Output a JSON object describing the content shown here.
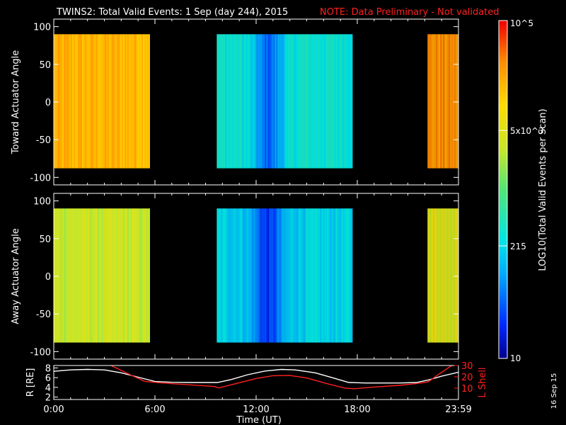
{
  "title": {
    "main": "TWINS2: Total Valid Events:  1 Sep (day 244), 2015",
    "note": "NOTE: Data Preliminary - Not validated",
    "note_color": "#ff2020"
  },
  "date_stamp": "16 Sep 15",
  "colorbar": {
    "label": "LOG10(Total Valid Events per Scan)",
    "scale": "log",
    "min": 10,
    "max": 100000,
    "tick_labels": [
      "10",
      "215",
      "5x10^3",
      "10^5"
    ],
    "tick_values": [
      10,
      215,
      5000,
      100000
    ]
  },
  "chart_data": [
    {
      "type": "heatmap",
      "name": "toward-panel",
      "ylabel": "Toward Actuator Angle",
      "ylim": [
        -110,
        110
      ],
      "yticks": [
        100,
        50,
        0,
        -50,
        -100
      ],
      "angle_range": [
        -88,
        90
      ],
      "xlim_hours": [
        0,
        24
      ],
      "xticks": [
        "0:00",
        "6:00",
        "12:00",
        "18:00",
        "23:59"
      ],
      "segments": [
        {
          "start": "0:00",
          "end": "5:40",
          "level": 4.25
        },
        {
          "start": "9:40",
          "end": "17:40",
          "level": 2.5,
          "min_level": 1.7,
          "min_time": "12:40"
        },
        {
          "start": "22:10",
          "end": "23:59",
          "level": 4.45
        }
      ]
    },
    {
      "type": "heatmap",
      "name": "away-panel",
      "ylabel": "Away Actuator Angle",
      "ylim": [
        -110,
        110
      ],
      "yticks": [
        100,
        50,
        0,
        -50,
        -100
      ],
      "angle_range": [
        -88,
        90
      ],
      "xlim_hours": [
        0,
        24
      ],
      "xticks": [
        "0:00",
        "6:00",
        "12:00",
        "18:00",
        "23:59"
      ],
      "segments": [
        {
          "start": "0:00",
          "end": "5:40",
          "level": 3.5
        },
        {
          "start": "9:40",
          "end": "17:40",
          "level": 2.3,
          "min_level": 1.45,
          "min_time": "12:40"
        },
        {
          "start": "22:10",
          "end": "23:59",
          "level": 3.7
        }
      ]
    },
    {
      "type": "line",
      "name": "orbit-panel",
      "xlabel": "Time (UT)",
      "xticks": [
        "0:00",
        "6:00",
        "12:00",
        "18:00",
        "23:59"
      ],
      "left_axis": {
        "label": "R [RE]",
        "ylim": [
          1.5,
          8.5
        ],
        "ticks": [
          2,
          4,
          6,
          8
        ]
      },
      "right_axis": {
        "label": "L Shell",
        "ylim": [
          0,
          30
        ],
        "ticks": [
          10,
          20,
          30
        ],
        "color": "#ff2020"
      },
      "series": [
        {
          "name": "R",
          "color": "#ffffff",
          "axis": "left",
          "x_hours": [
            0,
            1,
            2,
            3,
            4,
            5,
            6,
            7,
            8,
            9,
            9.7,
            10.5,
            11.5,
            12.5,
            13.5,
            14.3,
            15.5,
            16.5,
            17.5,
            18.5,
            19.5,
            20.5,
            21.5,
            22.2,
            23,
            23.98
          ],
          "values": [
            7.3,
            7.6,
            7.7,
            7.6,
            7.0,
            6.1,
            5.2,
            5.05,
            5.0,
            5.0,
            5.0,
            5.6,
            6.6,
            7.35,
            7.7,
            7.6,
            7.0,
            6.0,
            5.0,
            4.9,
            4.9,
            4.9,
            5.0,
            5.5,
            6.3,
            7.1
          ]
        },
        {
          "name": "L Shell",
          "color": "#ff2020",
          "axis": "right",
          "x_hours": [
            3.4,
            4.5,
            5.4,
            6.5,
            8.0,
            9.5,
            9.8,
            10.8,
            12.0,
            13.0,
            14.0,
            15.0,
            16.2,
            17.3,
            17.8,
            19.0,
            20.5,
            21.5,
            22.2,
            22.8,
            23.6
          ],
          "values": [
            30,
            22,
            16,
            14.5,
            13,
            11.5,
            10.2,
            14,
            18.5,
            21,
            21.2,
            19,
            14,
            10,
            9.5,
            11,
            12.5,
            14,
            15.5,
            22,
            30
          ]
        }
      ]
    }
  ]
}
